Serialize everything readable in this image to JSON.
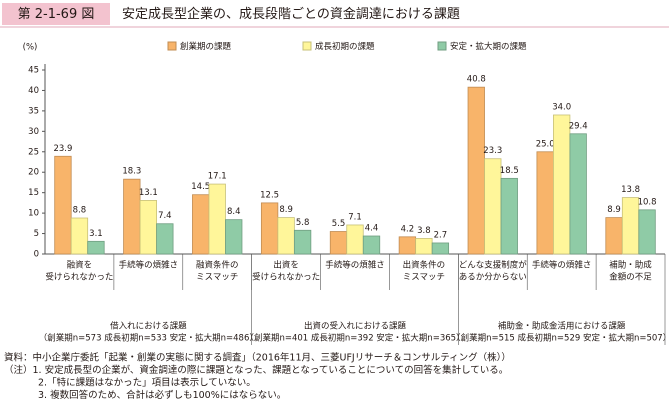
{
  "header": {
    "label": "第 2-1-69 図",
    "title": "安定成長型企業の、成長段階ごとの資金調達における課題"
  },
  "chart_data": {
    "type": "bar",
    "y_unit": "(%)",
    "categories": [
      [
        "融資を",
        "受けられなかった"
      ],
      [
        "手続等の煩雑さ"
      ],
      [
        "融資条件の",
        "ミスマッチ"
      ],
      [
        "出資を",
        "受けられなかった"
      ],
      [
        "手続等の煩雑さ"
      ],
      [
        "出資条件の",
        "ミスマッチ"
      ],
      [
        "どんな支援制度が",
        "あるか分からない"
      ],
      [
        "手続等の煩雑さ"
      ],
      [
        "補助・助成",
        "金額の不足"
      ]
    ],
    "groups": [
      {
        "label": "借入れにおける課題",
        "note": "（創業期n=573 成長初期n=533 安定・拡大期n=486）"
      },
      {
        "label": "出資の受入れにおける課題",
        "note": "（創業期n=401 成長初期n=392 安定・拡大期n=365）"
      },
      {
        "label": "補助金・助成金活用における課題",
        "note": "（創業期n=515 成長初期n=529 安定・拡大期n=507）"
      }
    ],
    "series": [
      {
        "name": "創業期の課題",
        "color": "#f8b46a",
        "values": [
          23.9,
          18.3,
          14.5,
          12.5,
          5.5,
          4.2,
          40.8,
          25.0,
          8.9
        ],
        "value_labels": [
          "23.9",
          "18.3",
          "14.5",
          "12.5",
          "5.5",
          "4.2",
          "40.8",
          "25.0",
          "8.9"
        ]
      },
      {
        "name": "成長初期の課題",
        "color": "#fff69a",
        "values": [
          8.8,
          13.1,
          17.1,
          8.9,
          7.1,
          3.8,
          23.3,
          34.0,
          13.8
        ],
        "value_labels": [
          "8.8",
          "13.1",
          "17.1",
          "8.9",
          "7.1",
          "3.8",
          "23.3",
          "34.0",
          "13.8"
        ]
      },
      {
        "name": "安定・拡大期の課題",
        "color": "#8fcba6",
        "values": [
          3.1,
          7.4,
          8.4,
          5.8,
          4.4,
          2.7,
          18.5,
          29.4,
          10.8
        ],
        "value_labels": [
          "3.1",
          "7.4",
          "8.4",
          "5.8",
          "4.4",
          "2.7",
          "18.5",
          "29.4",
          "10.8"
        ]
      }
    ],
    "ylim": [
      0,
      45
    ],
    "yticks": [
      0,
      5,
      10,
      15,
      20,
      25,
      30,
      35,
      40,
      45
    ],
    "grid": false
  },
  "notes": [
    "資料：中小企業庁委託「起業・創業の実態に関する調査」（2016年11月、三菱UFJリサーチ＆コンサルティング（株））",
    "（注）1. 安定成長型の企業が、資金調達の際に課題となった、課題となっていることについての回答を集計している。",
    "2.「特に課題はなかった」項目は表示していない。",
    "3. 複数回答のため、合計は必ずしも100%にはならない。"
  ]
}
